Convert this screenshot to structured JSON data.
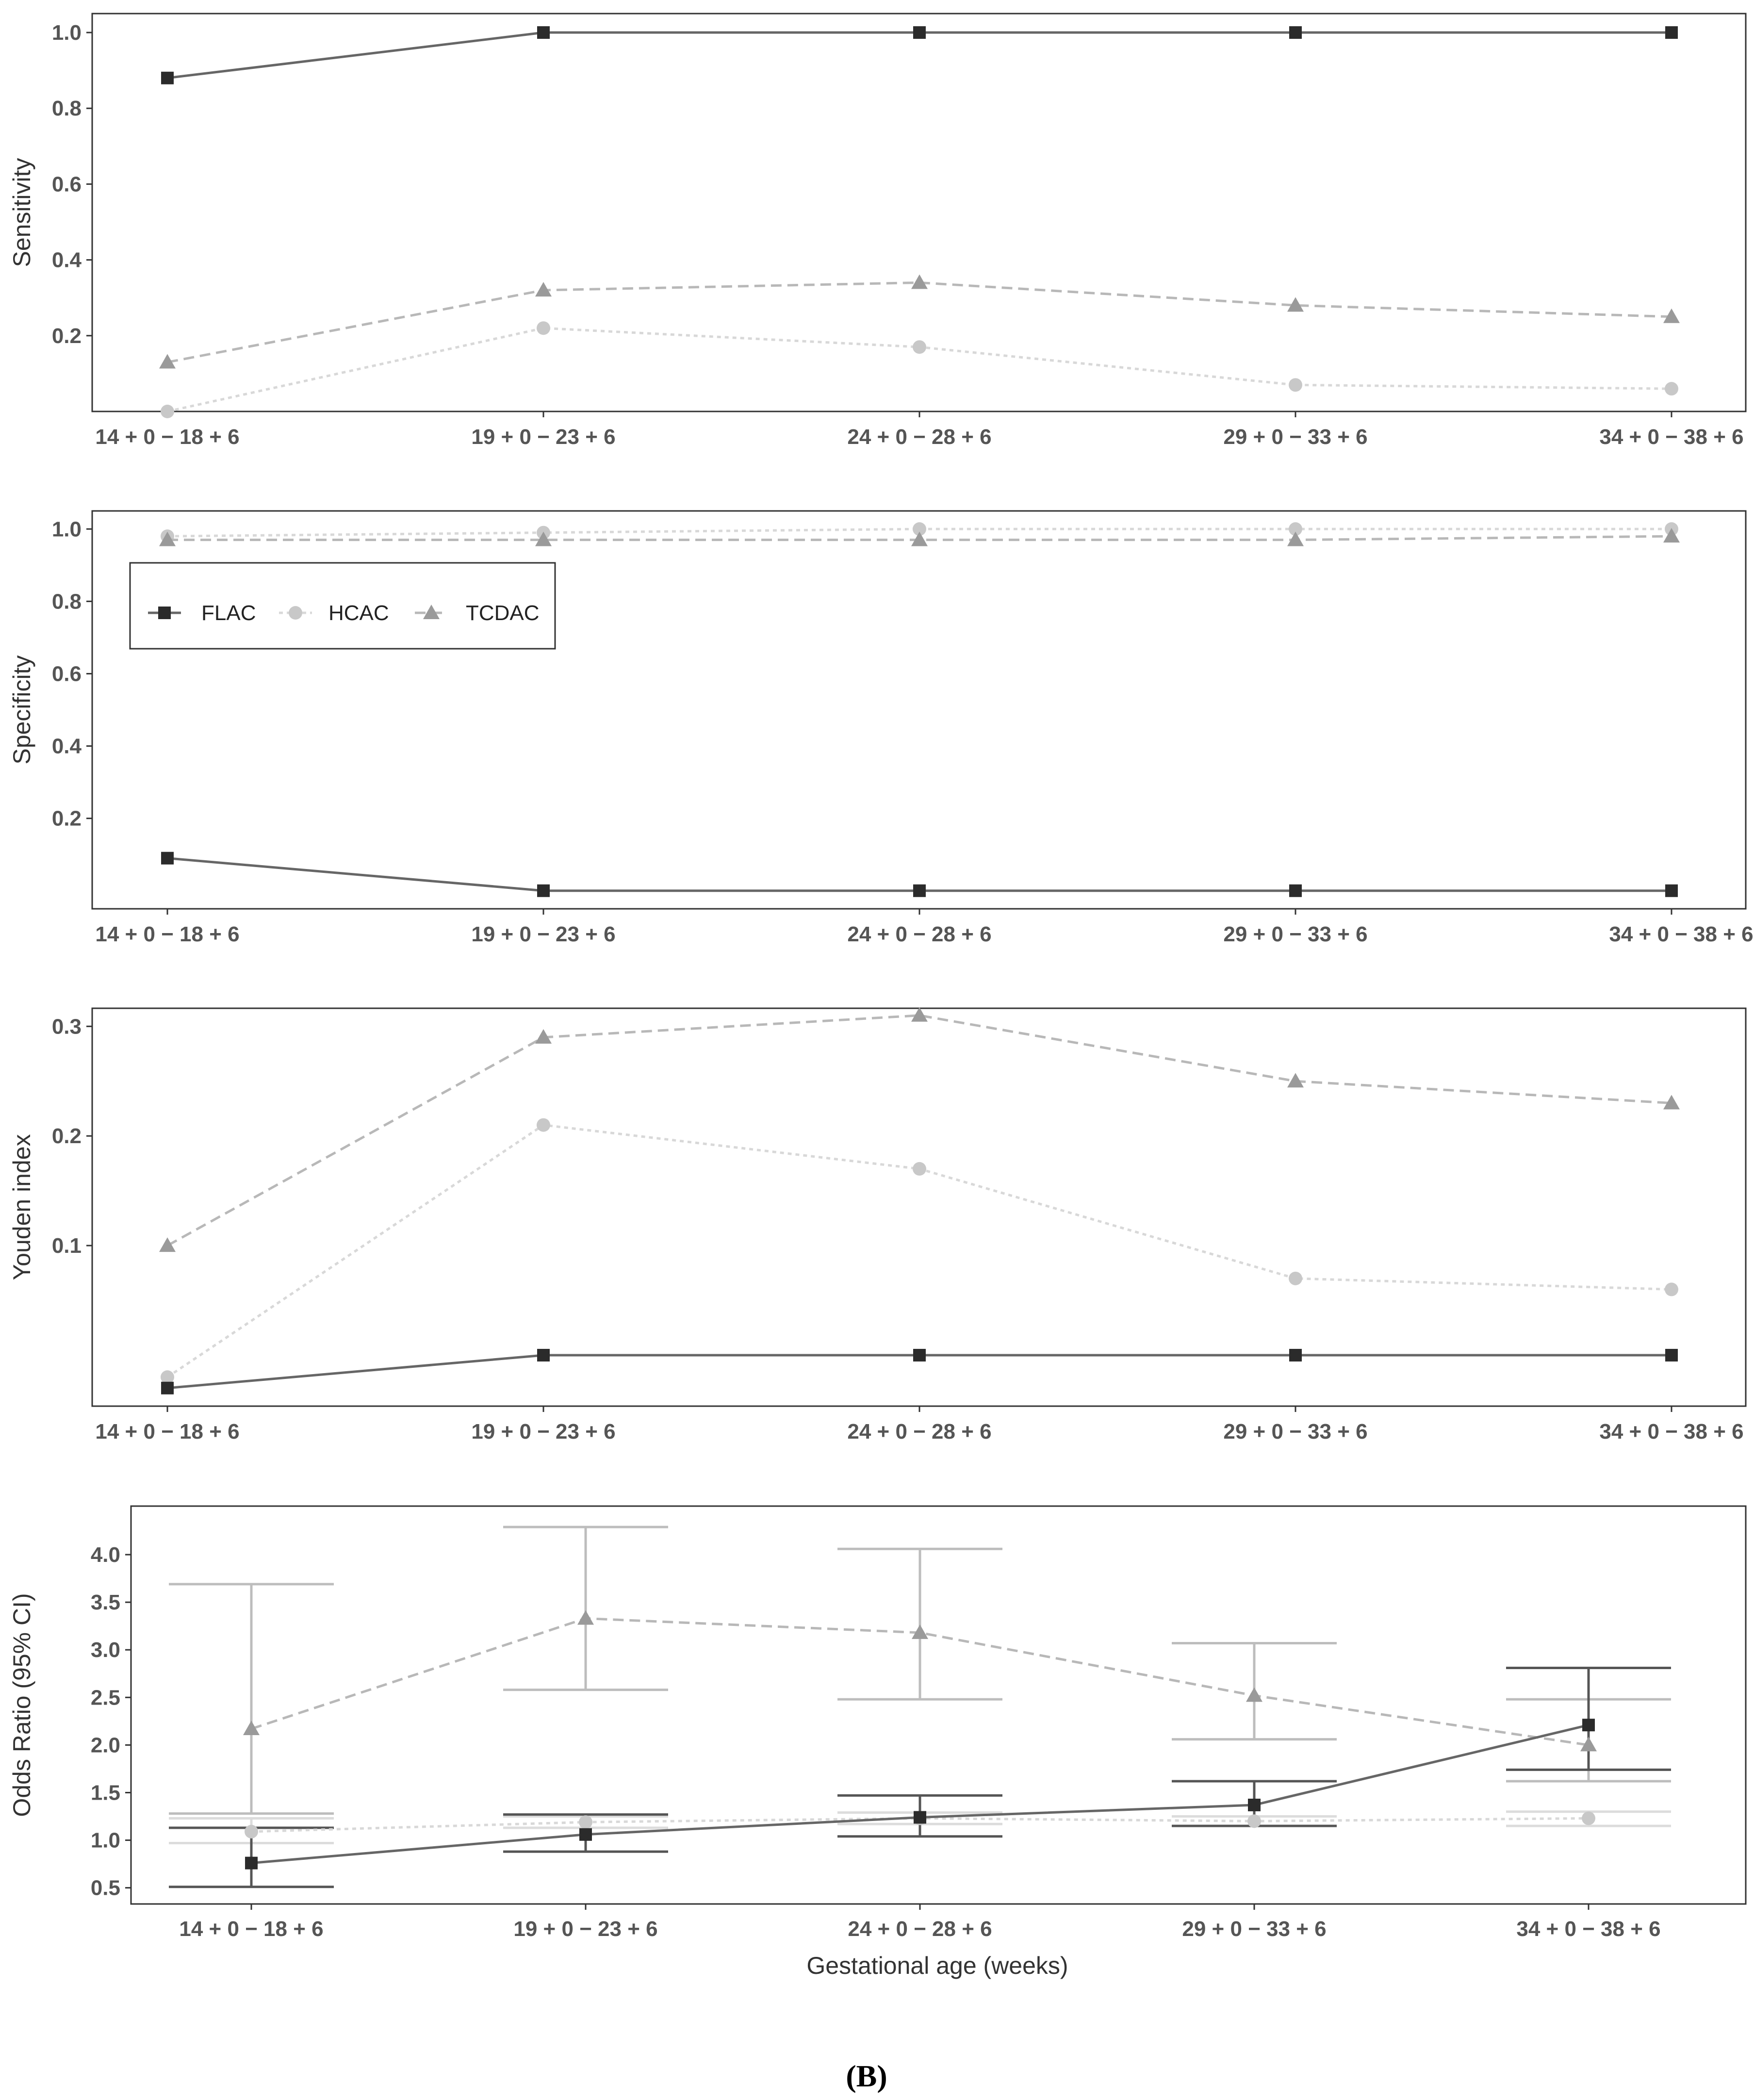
{
  "chart_data": [
    {
      "type": "line",
      "ylabel": "Sensitivity",
      "xlabel": "",
      "categories": [
        "14 + 0 − 18 + 6",
        "19 + 0 − 23 + 6",
        "24 + 0 − 28 + 6",
        "29 + 0 − 33 + 6",
        "34 + 0 − 38 + 6"
      ],
      "ylim": [
        0,
        1.05
      ],
      "yticks": [
        0.2,
        0.4,
        0.6,
        0.8,
        1.0
      ],
      "ytick_labels": [
        "0.2",
        "0.4",
        "0.6",
        "0.8",
        "1.0"
      ],
      "series": [
        {
          "name": "FLAC",
          "values": [
            0.88,
            1.0,
            1.0,
            1.0,
            1.0
          ]
        },
        {
          "name": "HCAC",
          "values": [
            0.0,
            0.22,
            0.17,
            0.07,
            0.06
          ]
        },
        {
          "name": "TCDAC",
          "values": [
            0.13,
            0.32,
            0.34,
            0.28,
            0.25
          ]
        }
      ]
    },
    {
      "type": "line",
      "ylabel": "Specificity",
      "xlabel": "",
      "categories": [
        "14 + 0 − 18 + 6",
        "19 + 0 − 23 + 6",
        "24 + 0 − 28 + 6",
        "29 + 0 − 33 + 6",
        "34 + 0 − 38 + 6"
      ],
      "ylim": [
        -0.05,
        1.05
      ],
      "yticks": [
        0.2,
        0.4,
        0.6,
        0.8,
        1.0
      ],
      "ytick_labels": [
        "0.2",
        "0.4",
        "0.6",
        "0.8",
        "1.0"
      ],
      "legend": {
        "placement": "top-left",
        "entries": [
          "FLAC",
          "HCAC",
          "TCDAC"
        ]
      },
      "series": [
        {
          "name": "FLAC",
          "values": [
            0.09,
            0.0,
            0.0,
            0.0,
            0.0
          ]
        },
        {
          "name": "HCAC",
          "values": [
            0.98,
            0.99,
            1.0,
            1.0,
            1.0
          ]
        },
        {
          "name": "TCDAC",
          "values": [
            0.97,
            0.97,
            0.97,
            0.97,
            0.98
          ]
        }
      ]
    },
    {
      "type": "line",
      "ylabel": "Youden index",
      "xlabel": "",
      "categories": [
        "14 + 0 − 18 + 6",
        "19 + 0 − 23 + 6",
        "24 + 0 − 28 + 6",
        "29 + 0 − 33 + 6",
        "34 + 0 − 38 + 6"
      ],
      "ylim": [
        -0.0465,
        0.3165
      ],
      "yticks": [
        0.1,
        0.2,
        0.3
      ],
      "ytick_labels": [
        "0.1",
        "0.2",
        "0.3"
      ],
      "series": [
        {
          "name": "FLAC",
          "values": [
            -0.03,
            0.0,
            0.0,
            0.0,
            0.0
          ]
        },
        {
          "name": "HCAC",
          "values": [
            -0.02,
            0.21,
            0.17,
            0.07,
            0.06
          ]
        },
        {
          "name": "TCDAC",
          "values": [
            0.1,
            0.29,
            0.31,
            0.25,
            0.23
          ]
        }
      ]
    },
    {
      "type": "line",
      "ylabel": "Odds Ratio (95% CI)",
      "xlabel": "Gestational age (weeks)",
      "categories": [
        "14 + 0 − 18 + 6",
        "19 + 0 − 23 + 6",
        "24 + 0 − 28 + 6",
        "29 + 0 − 33 + 6",
        "34 + 0 − 38 + 6"
      ],
      "ylim": [
        0.33,
        4.51
      ],
      "yticks": [
        0.5,
        1.0,
        1.5,
        2.0,
        2.5,
        3.0,
        3.5,
        4.0
      ],
      "ytick_labels": [
        "0.5",
        "1.0",
        "1.5",
        "2.0",
        "2.5",
        "3.0",
        "3.5",
        "4.0"
      ],
      "series": [
        {
          "name": "FLAC",
          "values": [
            0.76,
            1.06,
            1.24,
            1.37,
            2.21
          ],
          "ci_low": [
            0.51,
            0.88,
            1.04,
            1.15,
            1.74
          ],
          "ci_high": [
            1.13,
            1.27,
            1.47,
            1.62,
            2.81
          ]
        },
        {
          "name": "HCAC",
          "values": [
            1.09,
            1.19,
            1.23,
            1.2,
            1.23
          ],
          "ci_low": [
            0.97,
            1.13,
            1.17,
            1.15,
            1.15
          ],
          "ci_high": [
            1.23,
            1.25,
            1.29,
            1.25,
            1.3
          ]
        },
        {
          "name": "TCDAC",
          "values": [
            2.17,
            3.33,
            3.18,
            2.52,
            2.0
          ],
          "ci_low": [
            1.28,
            2.58,
            2.48,
            2.06,
            1.62
          ],
          "ci_high": [
            3.69,
            4.29,
            4.06,
            3.07,
            2.48
          ]
        }
      ]
    }
  ],
  "figure_label": "(B)",
  "series_styles": {
    "FLAC": {
      "color": "#2b2b2b",
      "line_color": "#666666",
      "dash": "",
      "marker": "square",
      "ci_color": "#555555"
    },
    "HCAC": {
      "color": "#c8c8c8",
      "line_color": "#d8d8d8",
      "dash": "8,8",
      "marker": "circle",
      "ci_color": "#dcdcdc"
    },
    "TCDAC": {
      "color": "#9a9a9a",
      "line_color": "#b8b8b8",
      "dash": "22,12",
      "marker": "triangle",
      "ci_color": "#bdbdbd"
    }
  }
}
